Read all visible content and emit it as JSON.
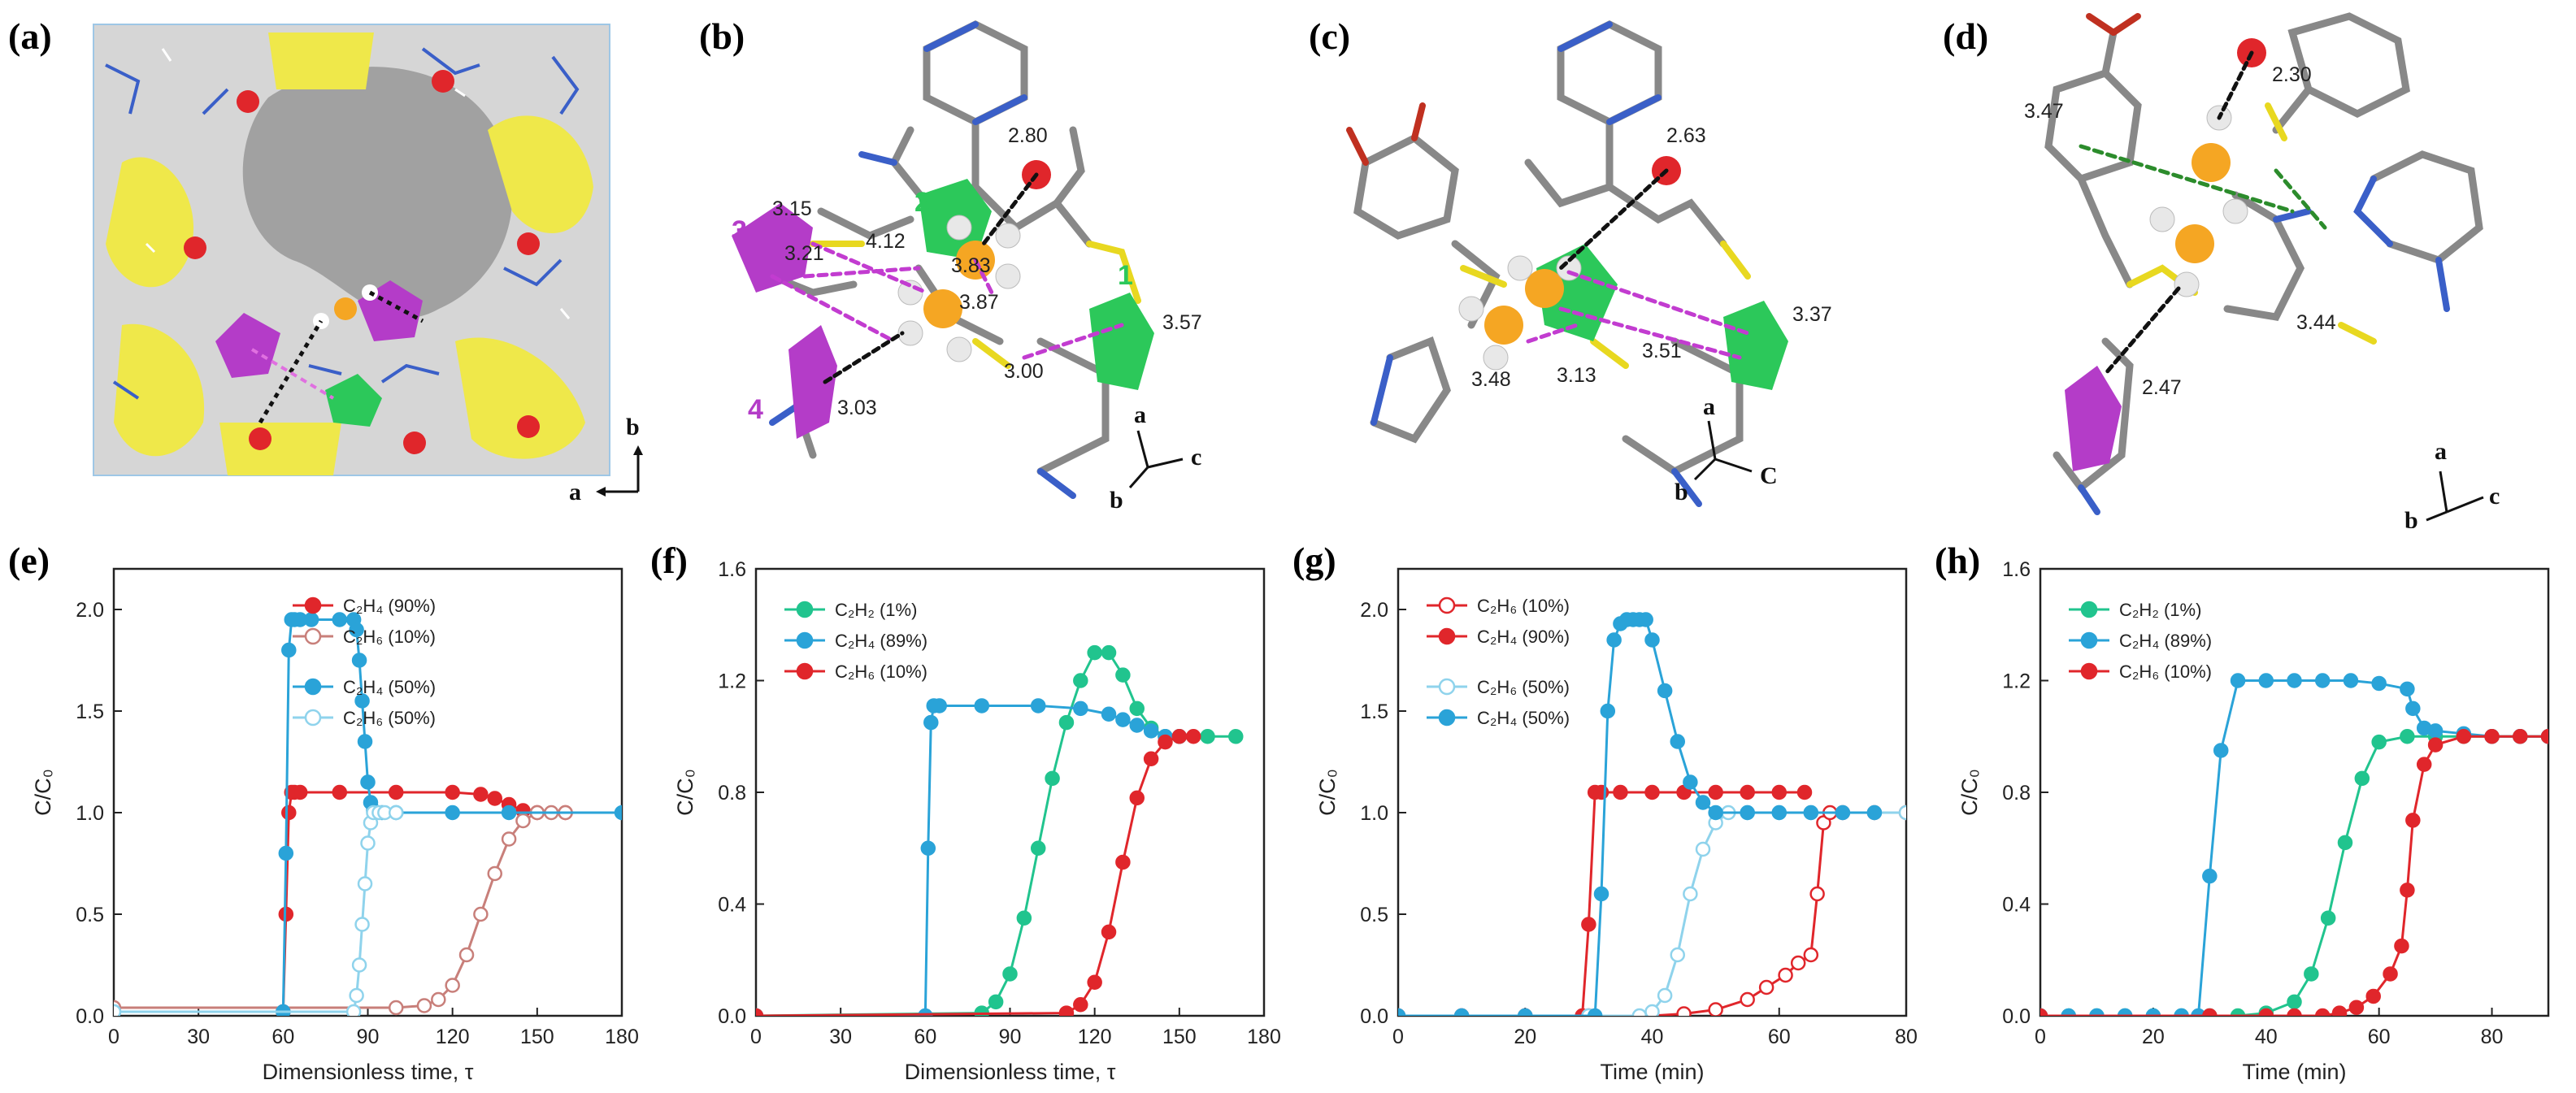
{
  "panel_labels": [
    "(a)",
    "(b)",
    "(c)",
    "(d)",
    "(e)",
    "(f)",
    "(g)",
    "(h)"
  ],
  "structures": {
    "b": {
      "distances": [
        "2.80",
        "3.15",
        "3.21",
        "4.12",
        "3.83",
        "3.87",
        "3.57",
        "3.00",
        "3.03"
      ],
      "site_numbers": [
        "1",
        "2",
        "3",
        "4"
      ],
      "axes": [
        "a",
        "b",
        "c"
      ]
    },
    "c": {
      "distances": [
        "2.63",
        "3.37",
        "3.51",
        "3.48",
        "3.13"
      ],
      "axes": [
        "a",
        "b",
        "C"
      ]
    },
    "d": {
      "distances": [
        "2.30",
        "3.47",
        "3.44",
        "2.47"
      ],
      "axes": [
        "a",
        "b",
        "c"
      ]
    },
    "a": {
      "axes": [
        "b",
        "a"
      ]
    }
  },
  "colors": {
    "red": "#e0262b",
    "blue": "#2aa3d8",
    "green": "#21c48e",
    "pink": "#c87f7a",
    "lightblue": "#8fd3ec",
    "yellow": "#f0e020",
    "purple": "#b43cc8",
    "orange": "#f5a623"
  },
  "chart_data": [
    {
      "id": "e",
      "type": "line",
      "xlabel": "Dimensionless time, τ",
      "ylabel": "C/C₀",
      "xlim": [
        0,
        180
      ],
      "ylim": [
        0,
        2.2
      ],
      "xticks": [
        0,
        30,
        60,
        90,
        120,
        150,
        180
      ],
      "yticks": [
        0.0,
        0.5,
        1.0,
        1.5,
        2.0
      ],
      "legend": [
        "C₂H₄ (90%)",
        "C₂H₆ (10%)",
        "C₂H₄ (50%)",
        "C₂H₆ (50%)"
      ],
      "series": [
        {
          "name": "C₂H₄ (90%)",
          "style": "filled",
          "color": "red",
          "x": [
            0,
            60,
            61,
            62,
            63,
            64,
            66,
            80,
            100,
            120,
            130,
            135,
            140,
            145,
            150,
            160
          ],
          "y": [
            0.02,
            0.02,
            0.5,
            1.0,
            1.1,
            1.1,
            1.1,
            1.1,
            1.1,
            1.1,
            1.09,
            1.07,
            1.04,
            1.01,
            1.0,
            1.0
          ]
        },
        {
          "name": "C₂H₆ (10%)",
          "style": "open",
          "color": "pink",
          "x": [
            0,
            100,
            110,
            115,
            120,
            125,
            130,
            135,
            140,
            145,
            150,
            155,
            160
          ],
          "y": [
            0.04,
            0.04,
            0.05,
            0.08,
            0.15,
            0.3,
            0.5,
            0.7,
            0.87,
            0.96,
            1.0,
            1.0,
            1.0
          ]
        },
        {
          "name": "C₂H₄ (50%)",
          "style": "filled",
          "color": "blue",
          "x": [
            0,
            60,
            61,
            62,
            63,
            64,
            66,
            70,
            80,
            85,
            86,
            87,
            88,
            89,
            90,
            91,
            92,
            95,
            100,
            120,
            140,
            180
          ],
          "y": [
            0.02,
            0.02,
            0.8,
            1.8,
            1.95,
            1.95,
            1.95,
            1.95,
            1.95,
            1.95,
            1.9,
            1.75,
            1.55,
            1.35,
            1.15,
            1.05,
            1.01,
            1.0,
            1.0,
            1.0,
            1.0,
            1.0
          ]
        },
        {
          "name": "C₂H₆ (50%)",
          "style": "open",
          "color": "lightblue",
          "x": [
            0,
            85,
            86,
            87,
            88,
            89,
            90,
            91,
            92,
            94,
            96,
            100
          ],
          "y": [
            0.02,
            0.02,
            0.1,
            0.25,
            0.45,
            0.65,
            0.85,
            0.95,
            1.0,
            1.0,
            1.0,
            1.0
          ]
        }
      ]
    },
    {
      "id": "f",
      "type": "line",
      "xlabel": "Dimensionless time, τ",
      "ylabel": "C/C₀",
      "xlim": [
        0,
        180
      ],
      "ylim": [
        0,
        1.6
      ],
      "xticks": [
        0,
        30,
        60,
        90,
        120,
        150,
        180
      ],
      "yticks": [
        0.0,
        0.4,
        0.8,
        1.2,
        1.6
      ],
      "legend": [
        "C₂H₂ (1%)",
        "C₂H₄ (89%)",
        "C₂H₆ (10%)"
      ],
      "series": [
        {
          "name": "C₂H₂ (1%)",
          "style": "filled",
          "color": "green",
          "x": [
            0,
            80,
            85,
            90,
            95,
            100,
            105,
            110,
            115,
            120,
            125,
            130,
            135,
            140,
            145,
            150,
            160,
            170
          ],
          "y": [
            0.0,
            0.01,
            0.05,
            0.15,
            0.35,
            0.6,
            0.85,
            1.05,
            1.2,
            1.3,
            1.3,
            1.22,
            1.1,
            1.03,
            1.0,
            1.0,
            1.0,
            1.0
          ]
        },
        {
          "name": "C₂H₄ (89%)",
          "style": "filled",
          "color": "blue",
          "x": [
            0,
            60,
            61,
            62,
            63,
            65,
            80,
            100,
            115,
            125,
            130,
            135,
            140,
            145,
            150
          ],
          "y": [
            0.0,
            0.0,
            0.6,
            1.05,
            1.11,
            1.11,
            1.11,
            1.11,
            1.1,
            1.08,
            1.06,
            1.04,
            1.02,
            1.0,
            1.0
          ]
        },
        {
          "name": "C₂H₆ (10%)",
          "style": "filled",
          "color": "red",
          "x": [
            0,
            110,
            115,
            120,
            125,
            130,
            135,
            140,
            145,
            150,
            155
          ],
          "y": [
            0.0,
            0.01,
            0.04,
            0.12,
            0.3,
            0.55,
            0.78,
            0.92,
            0.98,
            1.0,
            1.0
          ]
        }
      ]
    },
    {
      "id": "g",
      "type": "line",
      "xlabel": "Time (min)",
      "ylabel": "C/C₀",
      "xlim": [
        0,
        80
      ],
      "ylim": [
        0,
        2.2
      ],
      "xticks": [
        0,
        20,
        40,
        60,
        80
      ],
      "yticks": [
        0.0,
        0.5,
        1.0,
        1.5,
        2.0
      ],
      "legend": [
        "C₂H₆ (10%)",
        "C₂H₄ (90%)",
        "C₂H₆ (50%)",
        "C₂H₄ (50%)"
      ],
      "series": [
        {
          "name": "C₂H₆ (10%)",
          "style": "open",
          "color": "red",
          "x": [
            0,
            10,
            20,
            30,
            40,
            45,
            50,
            55,
            58,
            61,
            63,
            65,
            66,
            67,
            68,
            70,
            75,
            80
          ],
          "y": [
            0.0,
            0.0,
            0.0,
            0.0,
            0.0,
            0.01,
            0.03,
            0.08,
            0.14,
            0.2,
            0.26,
            0.3,
            0.6,
            0.95,
            1.0,
            1.0,
            1.0,
            1.0
          ]
        },
        {
          "name": "C₂H₄ (90%)",
          "style": "filled",
          "color": "red",
          "x": [
            0,
            10,
            20,
            29,
            30,
            31,
            32,
            35,
            40,
            45,
            50,
            55,
            60,
            64
          ],
          "y": [
            0.0,
            0.0,
            0.0,
            0.0,
            0.45,
            1.1,
            1.1,
            1.1,
            1.1,
            1.1,
            1.1,
            1.1,
            1.1,
            1.1
          ]
        },
        {
          "name": "C₂H₆ (50%)",
          "style": "open",
          "color": "lightblue",
          "x": [
            0,
            10,
            20,
            30,
            38,
            40,
            42,
            44,
            46,
            48,
            50,
            52,
            55,
            60,
            65,
            70,
            75,
            80
          ],
          "y": [
            0.0,
            0.0,
            0.0,
            0.0,
            0.0,
            0.02,
            0.1,
            0.3,
            0.6,
            0.82,
            0.95,
            1.0,
            1.0,
            1.0,
            1.0,
            1.0,
            1.0,
            1.0
          ]
        },
        {
          "name": "C₂H₄ (50%)",
          "style": "filled",
          "color": "blue",
          "x": [
            0,
            10,
            20,
            31,
            32,
            33,
            34,
            35,
            36,
            37,
            38,
            39,
            40,
            42,
            44,
            46,
            48,
            50,
            55,
            60,
            65,
            70,
            75
          ],
          "y": [
            0.0,
            0.0,
            0.0,
            0.0,
            0.6,
            1.5,
            1.85,
            1.93,
            1.95,
            1.95,
            1.95,
            1.95,
            1.85,
            1.6,
            1.35,
            1.15,
            1.05,
            1.0,
            1.0,
            1.0,
            1.0,
            1.0,
            1.0
          ]
        }
      ]
    },
    {
      "id": "h",
      "type": "line",
      "xlabel": "Time (min)",
      "ylabel": "C/C₀",
      "xlim": [
        0,
        90
      ],
      "ylim": [
        0,
        1.6
      ],
      "xticks": [
        0,
        20,
        40,
        60,
        80
      ],
      "yticks": [
        0.0,
        0.4,
        0.8,
        1.2,
        1.6
      ],
      "legend": [
        "C₂H₂ (1%)",
        "C₂H₄ (89%)",
        "C₂H₆ (10%)"
      ],
      "series": [
        {
          "name": "C₂H₂ (1%)",
          "style": "filled",
          "color": "green",
          "x": [
            0,
            5,
            10,
            15,
            20,
            25,
            30,
            35,
            40,
            45,
            48,
            51,
            54,
            57,
            60,
            65,
            70,
            75,
            80,
            85,
            90
          ],
          "y": [
            0.0,
            0.0,
            0.0,
            0.0,
            0.0,
            0.0,
            0.0,
            0.0,
            0.01,
            0.05,
            0.15,
            0.35,
            0.62,
            0.85,
            0.98,
            1.0,
            1.0,
            1.0,
            1.0,
            1.0,
            1.0
          ]
        },
        {
          "name": "C₂H₄ (89%)",
          "style": "filled",
          "color": "blue",
          "x": [
            0,
            5,
            10,
            15,
            20,
            25,
            28,
            30,
            32,
            35,
            40,
            45,
            50,
            55,
            60,
            65,
            66,
            68,
            70,
            75,
            80,
            85,
            90
          ],
          "y": [
            0.0,
            0.0,
            0.0,
            0.0,
            0.0,
            0.0,
            0.0,
            0.5,
            0.95,
            1.2,
            1.2,
            1.2,
            1.2,
            1.2,
            1.19,
            1.17,
            1.1,
            1.03,
            1.02,
            1.01,
            1.0,
            1.0,
            1.0
          ]
        },
        {
          "name": "C₂H₆ (10%)",
          "style": "filled",
          "color": "red",
          "x": [
            0,
            30,
            40,
            45,
            50,
            53,
            56,
            59,
            62,
            64,
            65,
            66,
            68,
            70,
            75,
            80,
            85,
            90
          ],
          "y": [
            0.0,
            0.0,
            0.0,
            0.0,
            0.0,
            0.01,
            0.03,
            0.07,
            0.15,
            0.25,
            0.45,
            0.7,
            0.9,
            0.97,
            1.0,
            1.0,
            1.0,
            1.0
          ]
        }
      ]
    }
  ]
}
